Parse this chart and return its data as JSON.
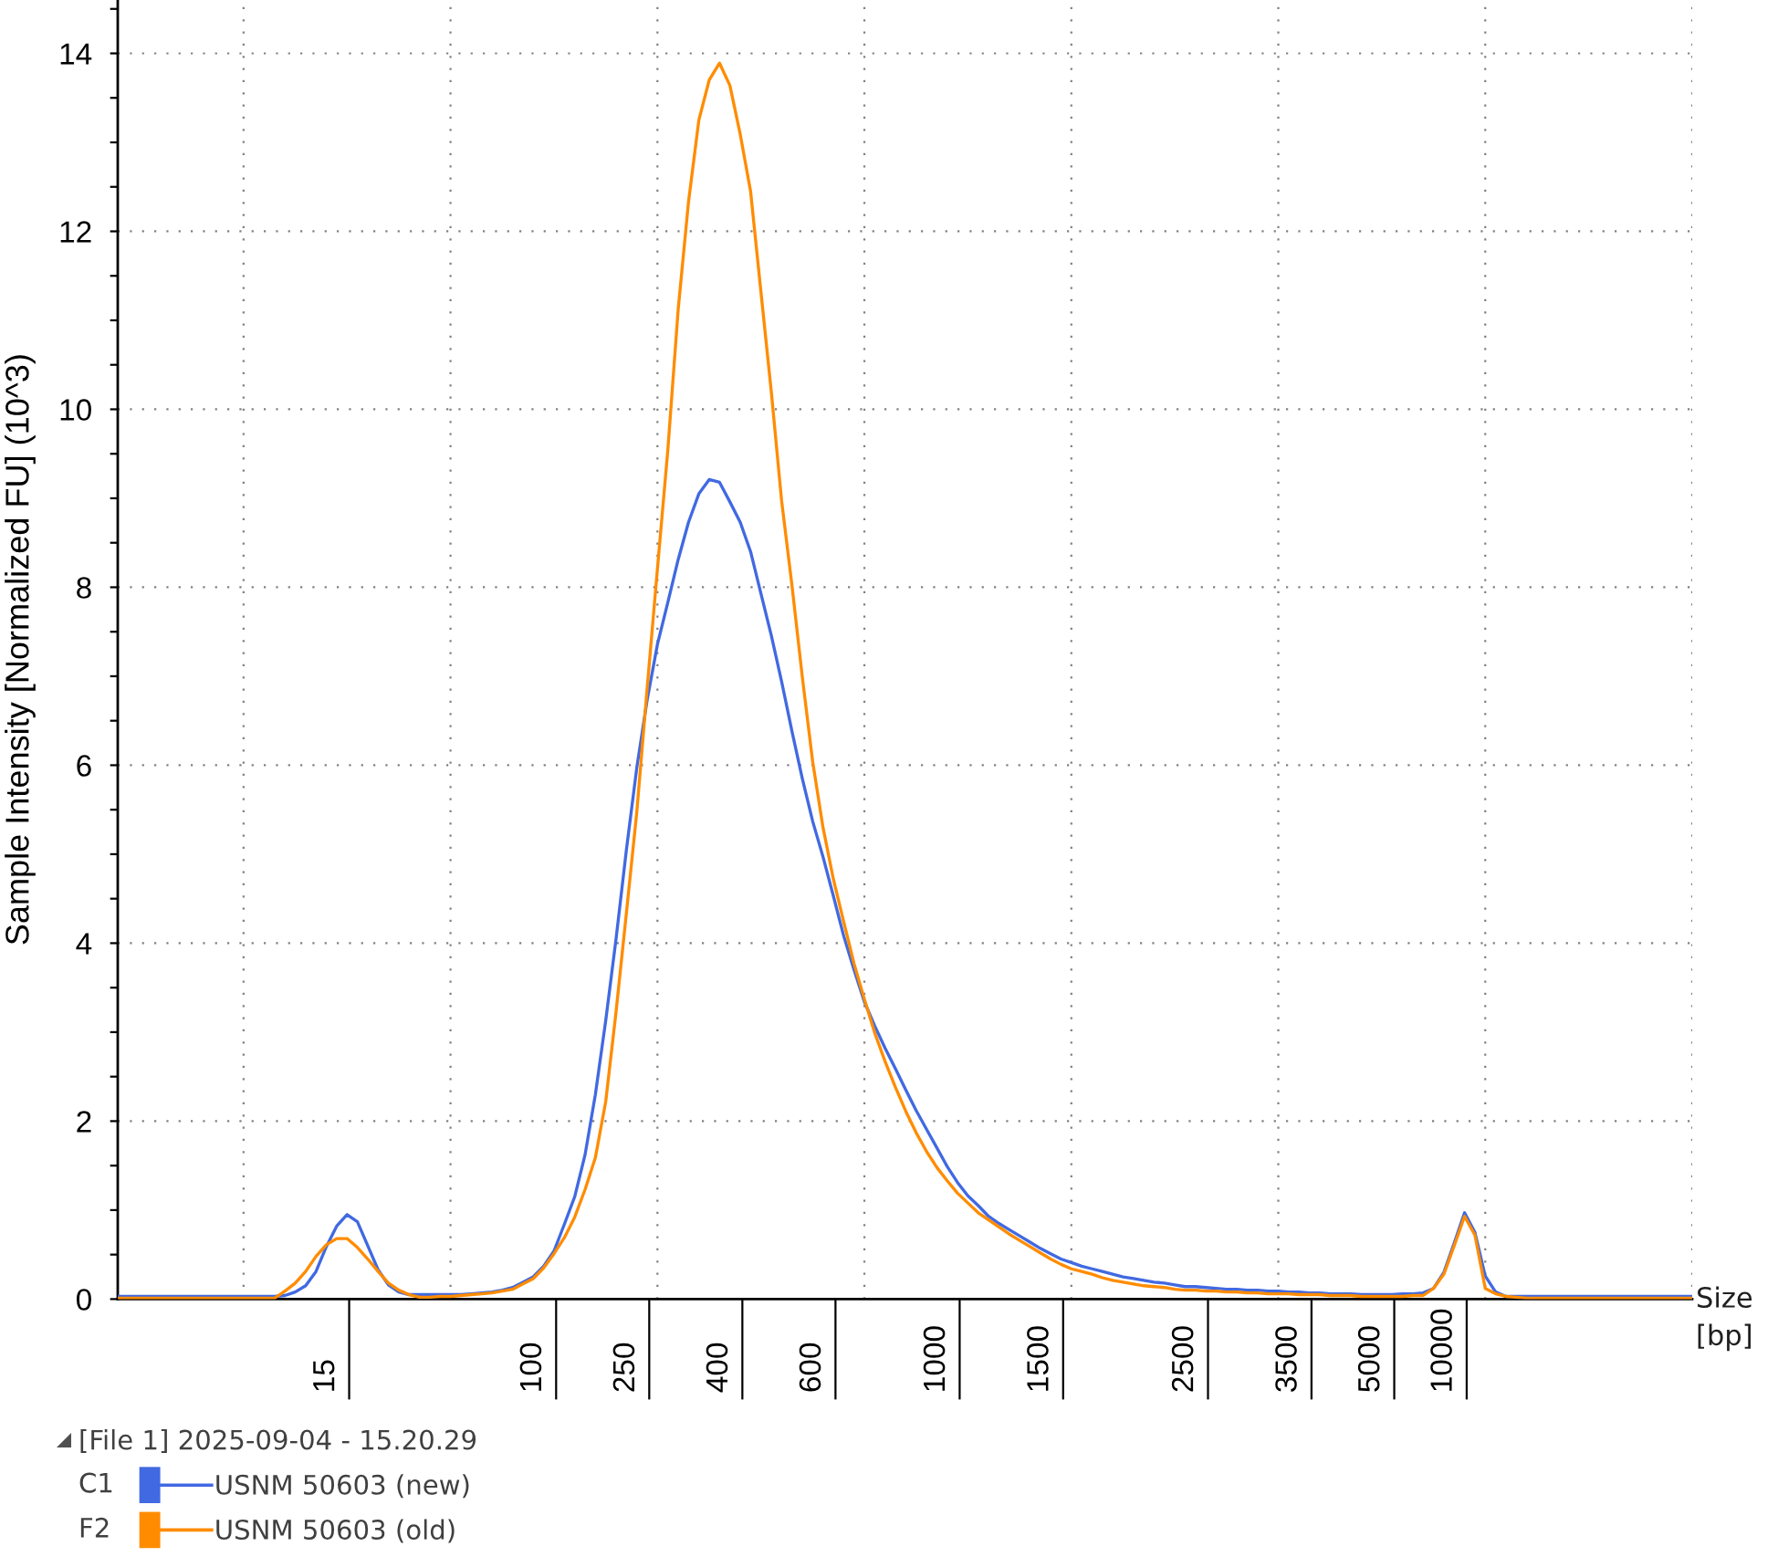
{
  "chart_data": {
    "type": "line",
    "ylabel": "Sample Intensity [Normalized FU] (10^3)",
    "xlabel": "Size\n[bp]",
    "legend_title": "[File 1] 2025-09-04 - 15.20.29",
    "annotations": [
      "C1",
      "F2"
    ],
    "categories": [
      null,
      null,
      null,
      null,
      null,
      null,
      null,
      null,
      null,
      null,
      null,
      null,
      null,
      null,
      null,
      null,
      null,
      null,
      null,
      null,
      "15",
      null,
      null,
      null,
      null,
      null,
      null,
      null,
      null,
      null,
      null,
      null,
      null,
      null,
      null,
      null,
      null,
      null,
      null,
      null,
      "100",
      null,
      null,
      null,
      null,
      null,
      null,
      null,
      null,
      "250",
      null,
      null,
      null,
      null,
      null,
      null,
      null,
      null,
      "400",
      null,
      null,
      null,
      null,
      null,
      null,
      null,
      null,
      "600",
      null,
      null,
      null,
      null,
      null,
      null,
      null,
      null,
      null,
      null,
      null,
      "1000",
      null,
      null,
      null,
      null,
      null,
      null,
      null,
      null,
      null,
      "1500",
      null,
      null,
      null,
      null,
      null,
      null,
      null,
      null,
      null,
      null,
      null,
      null,
      null,
      "2500",
      null,
      null,
      null,
      null,
      null,
      null,
      null,
      null,
      null,
      "3500",
      null,
      null,
      null,
      null,
      null,
      null,
      null,
      "5000",
      null,
      null,
      null,
      null,
      null,
      null,
      "10000",
      null,
      null,
      null,
      null,
      null,
      null,
      null,
      null,
      null,
      null,
      null,
      null,
      null,
      null,
      null,
      null,
      null,
      null,
      null,
      null,
      null,
      null,
      null,
      null
    ],
    "ylim": [
      0,
      14.6
    ],
    "yticks": [
      0,
      2,
      4,
      6,
      8,
      10,
      12,
      14
    ],
    "grid": "y",
    "legend": "bottom left",
    "series": [
      {
        "name": "USNM 50603 (new)",
        "color": "#4169e1",
        "values": [
          0.03,
          0.03,
          0.03,
          0.03,
          0.03,
          0.03,
          0.03,
          0.03,
          0.03,
          0.03,
          0.03,
          0.03,
          0.03,
          0.03,
          0.03,
          0.03,
          0.04,
          0.08,
          0.15,
          0.31,
          0.59,
          0.82,
          0.95,
          0.87,
          0.6,
          0.33,
          0.16,
          0.08,
          0.05,
          0.05,
          0.05,
          0.05,
          0.05,
          0.05,
          0.06,
          0.07,
          0.08,
          0.1,
          0.13,
          0.19,
          0.25,
          0.37,
          0.54,
          0.84,
          1.15,
          1.62,
          2.3,
          3.13,
          4.05,
          5.05,
          5.97,
          6.73,
          7.36,
          7.83,
          8.31,
          8.73,
          9.05,
          9.21,
          9.18,
          8.96,
          8.73,
          8.4,
          7.93,
          7.46,
          6.94,
          6.38,
          5.85,
          5.37,
          4.97,
          4.53,
          4.08,
          3.7,
          3.34,
          3.07,
          2.82,
          2.59,
          2.35,
          2.12,
          1.91,
          1.7,
          1.49,
          1.31,
          1.16,
          1.05,
          0.93,
          0.85,
          0.78,
          0.71,
          0.64,
          0.57,
          0.51,
          0.45,
          0.41,
          0.37,
          0.34,
          0.31,
          0.28,
          0.25,
          0.23,
          0.21,
          0.19,
          0.18,
          0.16,
          0.14,
          0.14,
          0.13,
          0.12,
          0.11,
          0.11,
          0.1,
          0.1,
          0.09,
          0.09,
          0.08,
          0.08,
          0.07,
          0.07,
          0.06,
          0.06,
          0.06,
          0.05,
          0.05,
          0.05,
          0.05,
          0.06,
          0.06,
          0.07,
          0.12,
          0.3,
          0.63,
          0.97,
          0.75,
          0.26,
          0.08,
          0.03,
          0.03,
          0.03,
          0.03,
          0.03,
          0.03,
          0.03,
          0.03,
          0.03,
          0.03,
          0.03,
          0.03,
          0.03,
          0.03,
          0.03,
          0.03,
          0.03,
          0.03,
          0.03
        ]
      },
      {
        "name": "USNM 50603 (old)",
        "color": "#ff8c00",
        "values": [
          0.01,
          0.01,
          0.01,
          0.01,
          0.01,
          0.01,
          0.01,
          0.01,
          0.01,
          0.01,
          0.01,
          0.01,
          0.01,
          0.01,
          0.01,
          0.01,
          0.09,
          0.18,
          0.31,
          0.48,
          0.61,
          0.68,
          0.68,
          0.58,
          0.45,
          0.31,
          0.18,
          0.1,
          0.05,
          0.02,
          0.02,
          0.03,
          0.03,
          0.04,
          0.05,
          0.06,
          0.07,
          0.09,
          0.11,
          0.17,
          0.23,
          0.35,
          0.51,
          0.69,
          0.92,
          1.23,
          1.59,
          2.22,
          3.23,
          4.34,
          5.47,
          6.86,
          8.21,
          9.54,
          11.12,
          12.33,
          13.25,
          13.7,
          13.89,
          13.64,
          13.09,
          12.45,
          11.32,
          10.2,
          8.97,
          8.02,
          6.99,
          6.04,
          5.3,
          4.72,
          4.24,
          3.77,
          3.37,
          2.99,
          2.67,
          2.38,
          2.11,
          1.87,
          1.66,
          1.48,
          1.33,
          1.19,
          1.08,
          0.97,
          0.89,
          0.81,
          0.73,
          0.66,
          0.59,
          0.52,
          0.45,
          0.39,
          0.34,
          0.31,
          0.28,
          0.24,
          0.21,
          0.19,
          0.17,
          0.15,
          0.14,
          0.13,
          0.11,
          0.1,
          0.1,
          0.09,
          0.09,
          0.08,
          0.08,
          0.07,
          0.07,
          0.06,
          0.06,
          0.06,
          0.05,
          0.05,
          0.05,
          0.04,
          0.04,
          0.04,
          0.03,
          0.03,
          0.03,
          0.03,
          0.03,
          0.04,
          0.04,
          0.12,
          0.28,
          0.6,
          0.93,
          0.72,
          0.12,
          0.06,
          0.03,
          0.02,
          0.01,
          0.01,
          0.01,
          0.01,
          0.01,
          0.01,
          0.01,
          0.01,
          0.01,
          0.01,
          0.01,
          0.01,
          0.01,
          0.01,
          0.01,
          0.01,
          0.01
        ]
      }
    ]
  }
}
